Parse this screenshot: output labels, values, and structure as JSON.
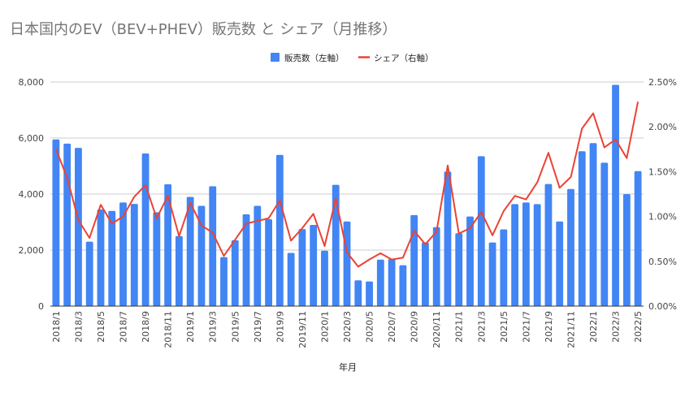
{
  "chart_data": {
    "type": "bar+line",
    "title": "日本国内のEV（BEV+PHEV）販売数 と シェア（月推移）",
    "xlabel": "年月",
    "ylabel_left": "",
    "ylabel_right": "",
    "legend_position": "top",
    "ylim_left": [
      0,
      8000
    ],
    "ylim_right": [
      0,
      2.5
    ],
    "yticks_left": [
      "0",
      "2,000",
      "4,000",
      "6,000",
      "8,000"
    ],
    "yticks_right": [
      "0.00%",
      "0.50%",
      "1.00%",
      "1.50%",
      "2.00%",
      "2.50%"
    ],
    "grid": true,
    "categories": [
      "2018/1",
      "2018/2",
      "2018/3",
      "2018/4",
      "2018/5",
      "2018/6",
      "2018/7",
      "2018/8",
      "2018/9",
      "2018/10",
      "2018/11",
      "2018/12",
      "2019/1",
      "2019/2",
      "2019/3",
      "2019/4",
      "2019/5",
      "2019/6",
      "2019/7",
      "2019/8",
      "2019/9",
      "2019/10",
      "2019/11",
      "2019/12",
      "2020/1",
      "2020/2",
      "2020/3",
      "2020/4",
      "2020/5",
      "2020/6",
      "2020/7",
      "2020/8",
      "2020/9",
      "2020/10",
      "2020/11",
      "2020/12",
      "2021/1",
      "2021/2",
      "2021/3",
      "2021/4",
      "2021/5",
      "2021/6",
      "2021/7",
      "2021/8",
      "2021/9",
      "2021/10",
      "2021/11",
      "2021/12",
      "2022/1",
      "2022/2",
      "2022/3",
      "2022/4",
      "2022/5"
    ],
    "series": [
      {
        "name": "販売数（左軸）",
        "type": "bar",
        "axis": "left",
        "color": "#4285f4",
        "values": [
          5950,
          5800,
          5650,
          2300,
          3450,
          3400,
          3700,
          3650,
          5450,
          3350,
          4350,
          2500,
          3900,
          3580,
          4280,
          1750,
          2350,
          3280,
          3580,
          3100,
          5400,
          1900,
          2750,
          2900,
          1980,
          4330,
          3020,
          920,
          880,
          1660,
          1680,
          1460,
          3250,
          2270,
          2820,
          4800,
          2600,
          3200,
          5350,
          2270,
          2740,
          3640,
          3700,
          3640,
          4360,
          3020,
          4180,
          5530,
          5820,
          5120,
          7900,
          4000,
          4820
        ]
      },
      {
        "name": "シェア（右軸）",
        "type": "line",
        "axis": "right",
        "unit": "%",
        "color": "#ea4335",
        "values": [
          1.75,
          1.43,
          0.96,
          0.76,
          1.13,
          0.92,
          1.0,
          1.22,
          1.35,
          0.98,
          1.23,
          0.78,
          1.15,
          0.9,
          0.82,
          0.56,
          0.74,
          0.92,
          0.95,
          0.98,
          1.18,
          0.73,
          0.87,
          1.03,
          0.67,
          1.2,
          0.6,
          0.44,
          0.52,
          0.59,
          0.52,
          0.54,
          0.84,
          0.69,
          0.83,
          1.57,
          0.81,
          0.87,
          1.05,
          0.79,
          1.06,
          1.23,
          1.19,
          1.38,
          1.71,
          1.32,
          1.44,
          1.98,
          2.15,
          1.77,
          1.86,
          1.65,
          2.28
        ]
      }
    ]
  }
}
